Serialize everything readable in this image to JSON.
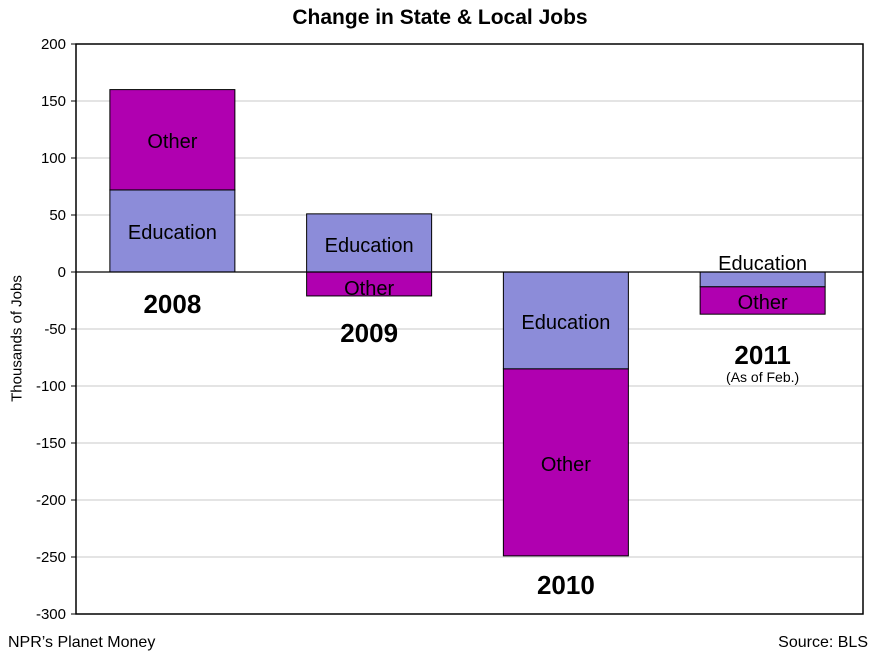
{
  "chart_data": {
    "type": "bar",
    "stacked": true,
    "title": "Change in State & Local Jobs",
    "xlabel": "",
    "ylabel": "Thousands of Jobs",
    "ylim": [
      -300,
      200
    ],
    "yticks": [
      200,
      150,
      100,
      50,
      0,
      -50,
      -100,
      -150,
      -200,
      -250,
      -300
    ],
    "grid": true,
    "categories": [
      "2008",
      "2009",
      "2010",
      "2011"
    ],
    "category_notes": [
      "",
      "",
      "",
      "(As of Feb.)"
    ],
    "series": [
      {
        "name": "Education",
        "color": "#8c8cd9",
        "values": [
          72,
          51,
          -85,
          -13
        ]
      },
      {
        "name": "Other",
        "color": "#b000b0",
        "values": [
          88,
          -21,
          -164,
          -24
        ]
      }
    ]
  },
  "footer": {
    "left": "NPR’s Planet Money",
    "right": "Source: BLS"
  }
}
